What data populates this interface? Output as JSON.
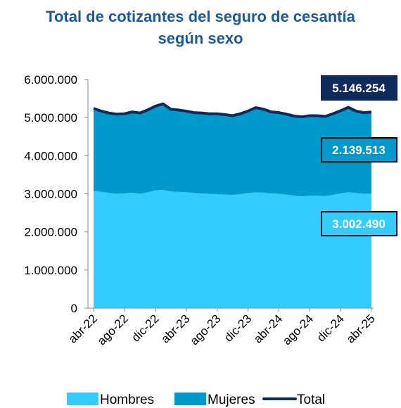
{
  "chart_data": {
    "type": "stacked_area",
    "title": "Total de cotizantes del seguro de cesantía según sexo",
    "categories": [
      "abr-22",
      null,
      null,
      null,
      "ago-22",
      null,
      null,
      null,
      "dic-22",
      null,
      null,
      null,
      "abr-23",
      null,
      null,
      null,
      "ago-23",
      null,
      null,
      null,
      "dic-23",
      null,
      null,
      null,
      "abr-24",
      null,
      null,
      null,
      "ago-24",
      null,
      null,
      null,
      "dic-24",
      null,
      null,
      null,
      "abr-25"
    ],
    "series": [
      {
        "name": "Hombres",
        "color": "#33ccff",
        "label_text_color": "#ffffff",
        "values": [
          3080000,
          3050000,
          3020000,
          3000000,
          3010000,
          3030000,
          3000000,
          3040000,
          3090000,
          3100000,
          3060000,
          3050000,
          3040000,
          3020000,
          3010000,
          3000000,
          2990000,
          2980000,
          2970000,
          2990000,
          3020000,
          3040000,
          3030000,
          3010000,
          3000000,
          2980000,
          2950000,
          2930000,
          2950000,
          2950000,
          2940000,
          2970000,
          3010000,
          3040000,
          3020000,
          3000000,
          3002490
        ],
        "value_labels": [
          null,
          null,
          null,
          null,
          null,
          null,
          null,
          null,
          null,
          null,
          null,
          null,
          null,
          null,
          null,
          null,
          null,
          null,
          null,
          null,
          null,
          null,
          null,
          null,
          null,
          null,
          null,
          null,
          null,
          null,
          null,
          null,
          null,
          null,
          null,
          null,
          "3.002.490"
        ]
      },
      {
        "name": "Mujeres",
        "color": "#0099cc",
        "label_text_color": "#ffffff",
        "values": [
          2160000,
          2120000,
          2100000,
          2090000,
          2090000,
          2120000,
          2120000,
          2160000,
          2210000,
          2260000,
          2160000,
          2150000,
          2130000,
          2110000,
          2110000,
          2100000,
          2110000,
          2100000,
          2080000,
          2110000,
          2150000,
          2220000,
          2190000,
          2140000,
          2130000,
          2110000,
          2090000,
          2090000,
          2100000,
          2100000,
          2090000,
          2130000,
          2170000,
          2230000,
          2150000,
          2130000,
          2139513
        ],
        "value_labels": [
          null,
          null,
          null,
          null,
          null,
          null,
          null,
          null,
          null,
          null,
          null,
          null,
          null,
          null,
          null,
          null,
          null,
          null,
          null,
          null,
          null,
          null,
          null,
          null,
          null,
          null,
          null,
          null,
          null,
          null,
          null,
          null,
          null,
          null,
          null,
          null,
          "2.139.513"
        ]
      },
      {
        "name": "Total",
        "color": "#0f2b5b",
        "label_text_color": "#ffffff",
        "values": [
          5240000,
          5170000,
          5120000,
          5090000,
          5100000,
          5150000,
          5120000,
          5200000,
          5300000,
          5360000,
          5220000,
          5200000,
          5170000,
          5130000,
          5120000,
          5100000,
          5100000,
          5080000,
          5050000,
          5100000,
          5170000,
          5260000,
          5220000,
          5150000,
          5130000,
          5090000,
          5040000,
          5020000,
          5050000,
          5050000,
          5030000,
          5100000,
          5180000,
          5270000,
          5170000,
          5130000,
          5146254
        ],
        "value_labels": [
          null,
          null,
          null,
          null,
          null,
          null,
          null,
          null,
          null,
          null,
          null,
          null,
          null,
          null,
          null,
          null,
          null,
          null,
          null,
          null,
          null,
          null,
          null,
          null,
          null,
          null,
          null,
          null,
          null,
          null,
          null,
          null,
          null,
          null,
          null,
          null,
          "5.146.254"
        ]
      }
    ],
    "ylim": [
      0,
      6000000
    ],
    "yticks": [
      0,
      {
        "value": 1000000,
        "label": "1.000.000"
      },
      {
        "value": 2000000,
        "label": "2.000.000"
      },
      {
        "value": 3000000,
        "label": "3.000.000"
      },
      {
        "value": 4000000,
        "label": "4.000.000"
      },
      {
        "value": 5000000,
        "label": "5.000.000"
      },
      {
        "value": 6000000,
        "label": "6.000.000"
      }
    ],
    "grid": false,
    "legend": "bottom"
  }
}
